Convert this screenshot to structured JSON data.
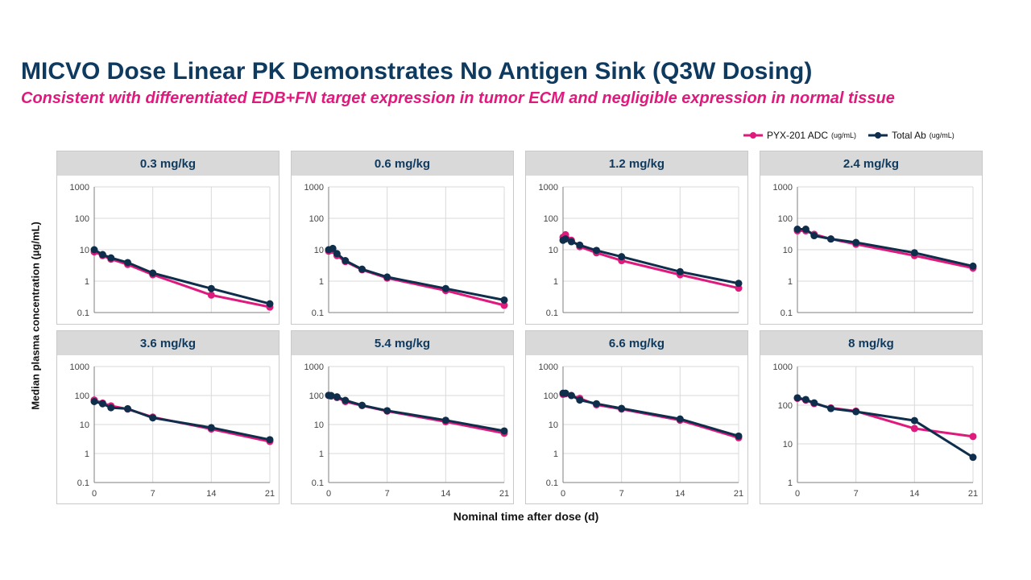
{
  "title": "MICVO Dose Linear PK Demonstrates No Antigen Sink (Q3W Dosing)",
  "subtitle": "Consistent with differentiated EDB+FN target expression in tumor ECM and negligible expression in normal tissue",
  "colors": {
    "adc": "#e0197d",
    "total_ab": "#0f2e4c",
    "title": "#0f3a5f",
    "header_bg": "#d9d9d9"
  },
  "legend": {
    "items": [
      {
        "label": "PYX-201 ADC",
        "unit": "(ug/mL)",
        "color": "#e0197d"
      },
      {
        "label": "Total Ab",
        "unit": "(ug/mL)",
        "color": "#0f2e4c"
      }
    ],
    "placement": "top-right"
  },
  "ylabel": "Median plasma concentration (µg/mL)",
  "xlabel": "Nominal time after dose (d)",
  "chart_data": [
    {
      "type": "line",
      "title": "0.3 mg/kg",
      "yscale": "log",
      "ylim": [
        0.1,
        1000
      ],
      "xlim": [
        0,
        21
      ],
      "yticks": [
        "0.1",
        "1",
        "10",
        "100",
        "1000"
      ],
      "xticks": [],
      "series": [
        {
          "name": "PYX-201 ADC",
          "x": [
            0,
            1,
            2,
            4,
            7,
            14,
            21
          ],
          "y": [
            8.5,
            6.5,
            5.0,
            3.4,
            1.6,
            0.36,
            0.15
          ]
        },
        {
          "name": "Total Ab",
          "x": [
            0,
            1,
            2,
            4,
            7,
            14,
            21
          ],
          "y": [
            10,
            7,
            5.5,
            3.9,
            1.8,
            0.58,
            0.19
          ]
        }
      ]
    },
    {
      "type": "line",
      "title": "0.6 mg/kg",
      "yscale": "log",
      "ylim": [
        0.1,
        1000
      ],
      "xlim": [
        0,
        21
      ],
      "yticks": [
        "0.1",
        "1",
        "10",
        "100",
        "1000"
      ],
      "xticks": [],
      "series": [
        {
          "name": "PYX-201 ADC",
          "x": [
            0,
            0.5,
            1,
            2,
            4,
            7,
            14,
            21
          ],
          "y": [
            9,
            9.5,
            6.5,
            4.2,
            2.3,
            1.25,
            0.5,
            0.17
          ]
        },
        {
          "name": "Total Ab",
          "x": [
            0,
            0.5,
            1,
            2,
            4,
            7,
            14,
            21
          ],
          "y": [
            10,
            11,
            7.5,
            4.5,
            2.4,
            1.35,
            0.58,
            0.25
          ]
        }
      ]
    },
    {
      "type": "line",
      "title": "1.2 mg/kg",
      "yscale": "log",
      "ylim": [
        0.1,
        1000
      ],
      "xlim": [
        0,
        21
      ],
      "yticks": [
        "0.1",
        "1",
        "10",
        "100",
        "1000"
      ],
      "xticks": [],
      "series": [
        {
          "name": "PYX-201 ADC",
          "x": [
            0,
            0.3,
            1,
            2,
            4,
            7,
            14,
            21
          ],
          "y": [
            25,
            30,
            20,
            12.5,
            8,
            4.5,
            1.6,
            0.6
          ]
        },
        {
          "name": "Total Ab",
          "x": [
            0,
            0.3,
            1,
            2,
            4,
            7,
            14,
            21
          ],
          "y": [
            20,
            22,
            18,
            14,
            9.5,
            6,
            2,
            0.85
          ]
        }
      ]
    },
    {
      "type": "line",
      "title": "2.4 mg/kg",
      "yscale": "log",
      "ylim": [
        0.1,
        1000
      ],
      "xlim": [
        0,
        21
      ],
      "yticks": [
        "0.1",
        "1",
        "10",
        "100",
        "1000"
      ],
      "xticks": [],
      "series": [
        {
          "name": "PYX-201 ADC",
          "x": [
            0,
            1,
            2,
            4,
            7,
            14,
            21
          ],
          "y": [
            40,
            40,
            31,
            22,
            15,
            6.5,
            2.6
          ]
        },
        {
          "name": "Total Ab",
          "x": [
            0,
            1,
            2,
            4,
            7,
            14,
            21
          ],
          "y": [
            45,
            45,
            28,
            22,
            17,
            8,
            3
          ]
        }
      ]
    },
    {
      "type": "line",
      "title": "3.6 mg/kg",
      "yscale": "log",
      "ylim": [
        0.1,
        1000
      ],
      "xlim": [
        0,
        21
      ],
      "yticks": [
        "0.1",
        "1",
        "10",
        "100",
        "1000"
      ],
      "xticks": [
        "0",
        "7",
        "14",
        "21"
      ],
      "series": [
        {
          "name": "PYX-201 ADC",
          "x": [
            0,
            1,
            2,
            4,
            7,
            14,
            21
          ],
          "y": [
            70,
            55,
            44,
            34,
            18,
            7,
            2.6
          ]
        },
        {
          "name": "Total Ab",
          "x": [
            0,
            1,
            2,
            4,
            7,
            14,
            21
          ],
          "y": [
            62,
            52,
            38,
            35,
            17,
            7.8,
            3
          ]
        }
      ]
    },
    {
      "type": "line",
      "title": "5.4 mg/kg",
      "yscale": "log",
      "ylim": [
        0.1,
        1000
      ],
      "xlim": [
        0,
        21
      ],
      "yticks": [
        "0.1",
        "1",
        "10",
        "100",
        "1000"
      ],
      "xticks": [
        "0",
        "7",
        "14",
        "21"
      ],
      "series": [
        {
          "name": "PYX-201 ADC",
          "x": [
            0,
            0.3,
            1,
            2,
            4,
            7,
            14,
            21
          ],
          "y": [
            100,
            95,
            85,
            62,
            45,
            29,
            12.5,
            5
          ]
        },
        {
          "name": "Total Ab",
          "x": [
            0,
            0.3,
            1,
            2,
            4,
            7,
            14,
            21
          ],
          "y": [
            102,
            100,
            90,
            68,
            46,
            30,
            14,
            6
          ]
        }
      ]
    },
    {
      "type": "line",
      "title": "6.6 mg/kg",
      "yscale": "log",
      "ylim": [
        0.1,
        1000
      ],
      "xlim": [
        0,
        21
      ],
      "yticks": [
        "0.1",
        "1",
        "10",
        "100",
        "1000"
      ],
      "xticks": [
        "0",
        "7",
        "14",
        "21"
      ],
      "series": [
        {
          "name": "PYX-201 ADC",
          "x": [
            0,
            0.3,
            1,
            2,
            4,
            7,
            14,
            21
          ],
          "y": [
            110,
            115,
            100,
            80,
            48,
            34,
            14,
            3.5
          ]
        },
        {
          "name": "Total Ab",
          "x": [
            0,
            0.3,
            1,
            2,
            4,
            7,
            14,
            21
          ],
          "y": [
            120,
            120,
            100,
            70,
            52,
            36,
            15.5,
            4
          ]
        }
      ]
    },
    {
      "type": "line",
      "title": "8 mg/kg",
      "yscale": "log",
      "ylim": [
        1,
        1000
      ],
      "xlim": [
        0,
        21
      ],
      "yticks": [
        "1",
        "10",
        "100",
        "1000"
      ],
      "xticks": [
        "0",
        "7",
        "14",
        "21"
      ],
      "series": [
        {
          "name": "PYX-201 ADC",
          "x": [
            0,
            1,
            2,
            4,
            7,
            14,
            21
          ],
          "y": [
            150,
            135,
            110,
            85,
            70,
            25,
            15.5
          ]
        },
        {
          "name": "Total Ab",
          "x": [
            0,
            1,
            2,
            4,
            7,
            14,
            21
          ],
          "y": [
            155,
            140,
            115,
            82,
            68,
            40,
            4.5
          ]
        }
      ]
    }
  ]
}
